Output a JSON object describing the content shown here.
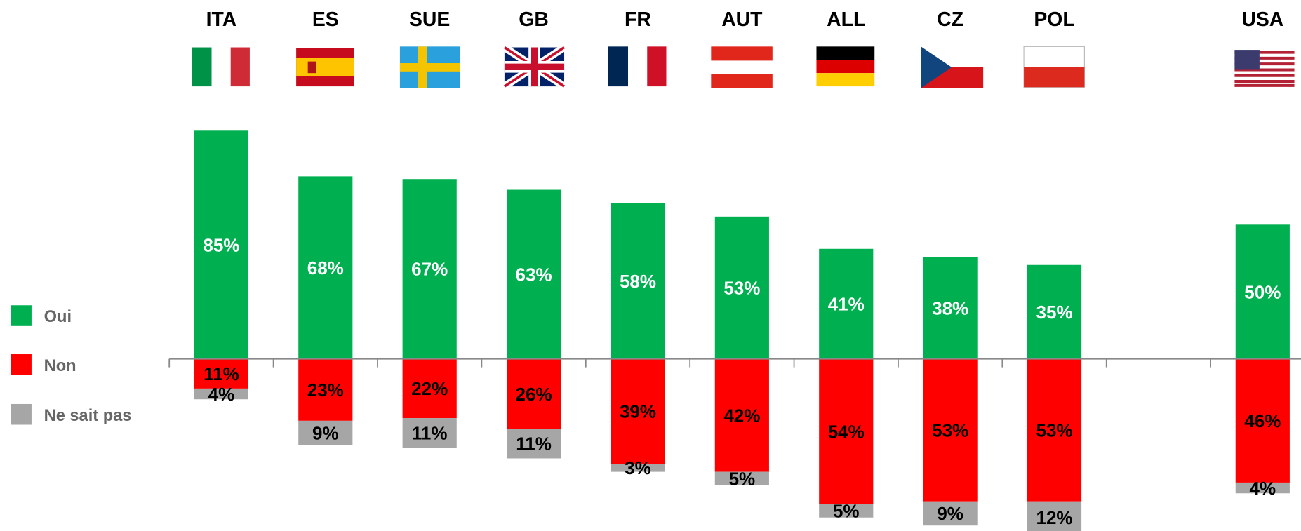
{
  "chart_data": {
    "type": "bar",
    "stacked": true,
    "categories": [
      "ITA",
      "ES",
      "SUE",
      "GB",
      "FR",
      "AUT",
      "ALL",
      "CZ",
      "POL",
      null,
      "USA"
    ],
    "series": [
      {
        "name": "Oui",
        "color": "#00b050",
        "values": [
          85,
          68,
          67,
          63,
          58,
          53,
          41,
          38,
          35,
          null,
          50
        ],
        "value_labels": [
          "85%",
          "68%",
          "67%",
          "63%",
          "58%",
          "53%",
          "41%",
          "38%",
          "35%",
          null,
          "50%"
        ]
      },
      {
        "name": "Non",
        "color": "#ff0000",
        "values": [
          -11,
          -23,
          -22,
          -26,
          -39,
          -42,
          -54,
          -53,
          -53,
          null,
          -46
        ],
        "value_labels": [
          "11%",
          "23%",
          "22%",
          "26%",
          "39%",
          "42%",
          "54%",
          "53%",
          "53%",
          null,
          "46%"
        ]
      },
      {
        "name": "Ne sait pas",
        "color": "#a6a6a6",
        "values": [
          -4,
          -9,
          -11,
          -11,
          -3,
          -5,
          -5,
          -9,
          -12,
          null,
          -4
        ],
        "value_labels": [
          "4%",
          "9%",
          "11%",
          "11%",
          "3%",
          "5%",
          "5%",
          "9%",
          "12%",
          null,
          "4%"
        ]
      }
    ],
    "ylim": [
      -64,
      91
    ],
    "legend": "left"
  }
}
